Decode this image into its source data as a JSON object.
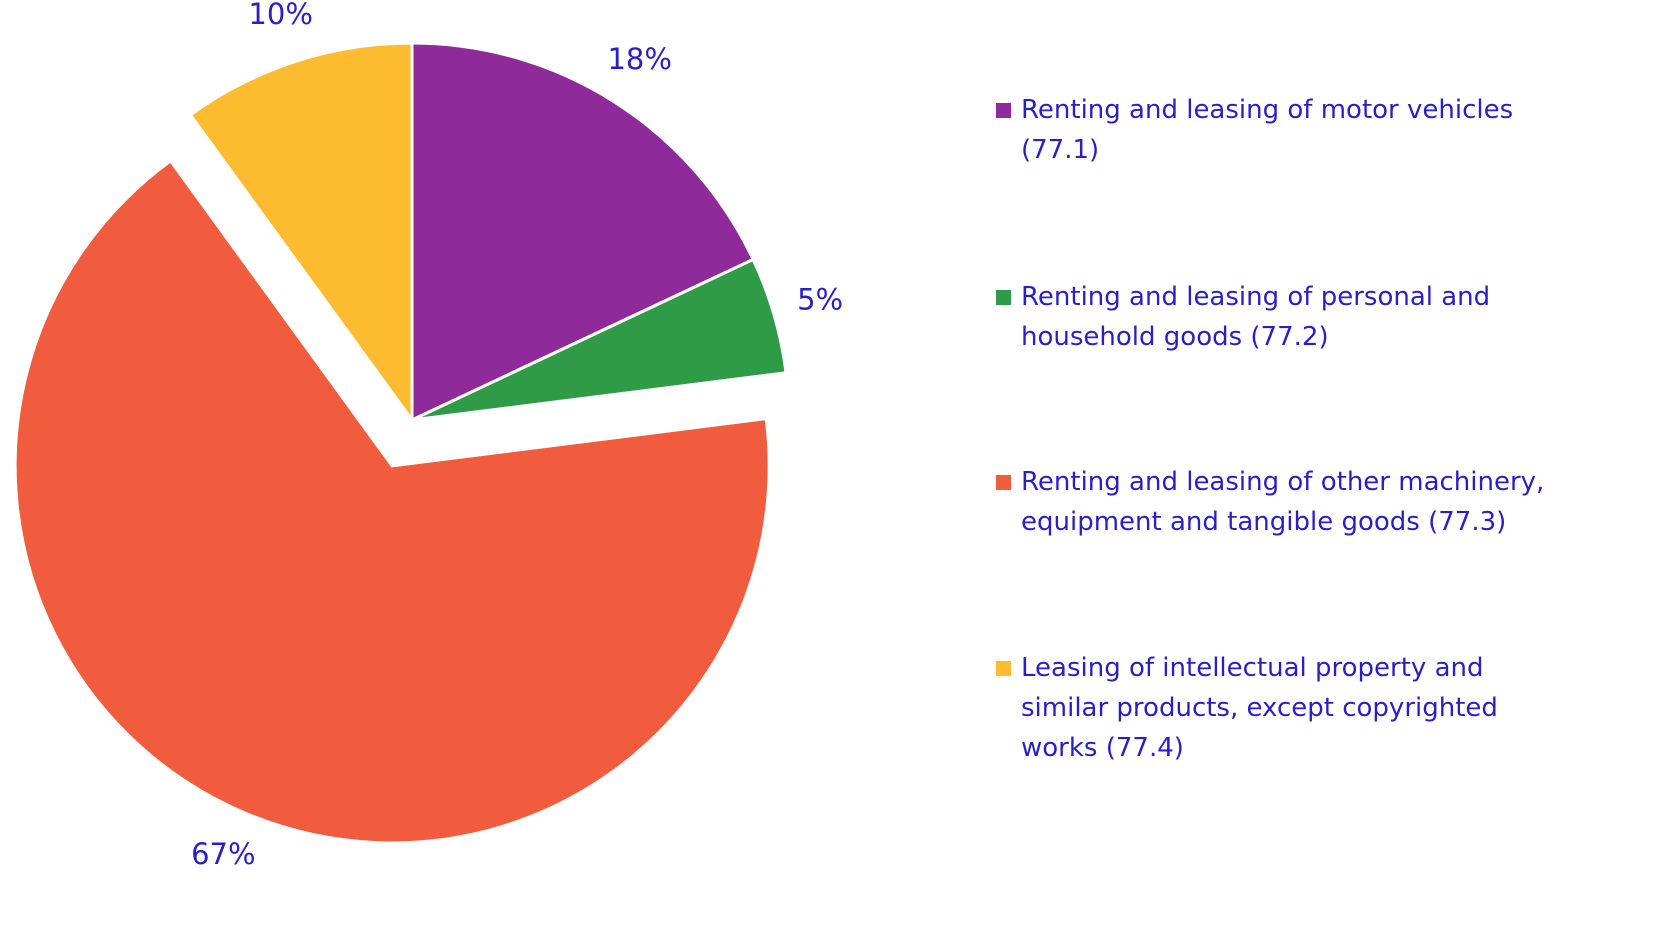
{
  "chart_data": {
    "type": "pie",
    "categories": [
      "Renting and leasing of motor vehicles (77.1)",
      "Renting and leasing of personal and household goods (77.2)",
      "Renting and leasing of other machinery, equipment and tangible goods (77.3)",
      "Leasing of intellectual property and similar products, except copyrighted works (77.4)"
    ],
    "values": [
      18,
      5,
      67,
      10
    ],
    "value_labels": [
      "18%",
      "5%",
      "67%",
      "10%"
    ],
    "colors": [
      "#8e2a9a",
      "#2f9b46",
      "#f05c3d",
      "#fdbb30"
    ],
    "exploded": [
      false,
      false,
      true,
      false
    ],
    "legend": "right"
  }
}
